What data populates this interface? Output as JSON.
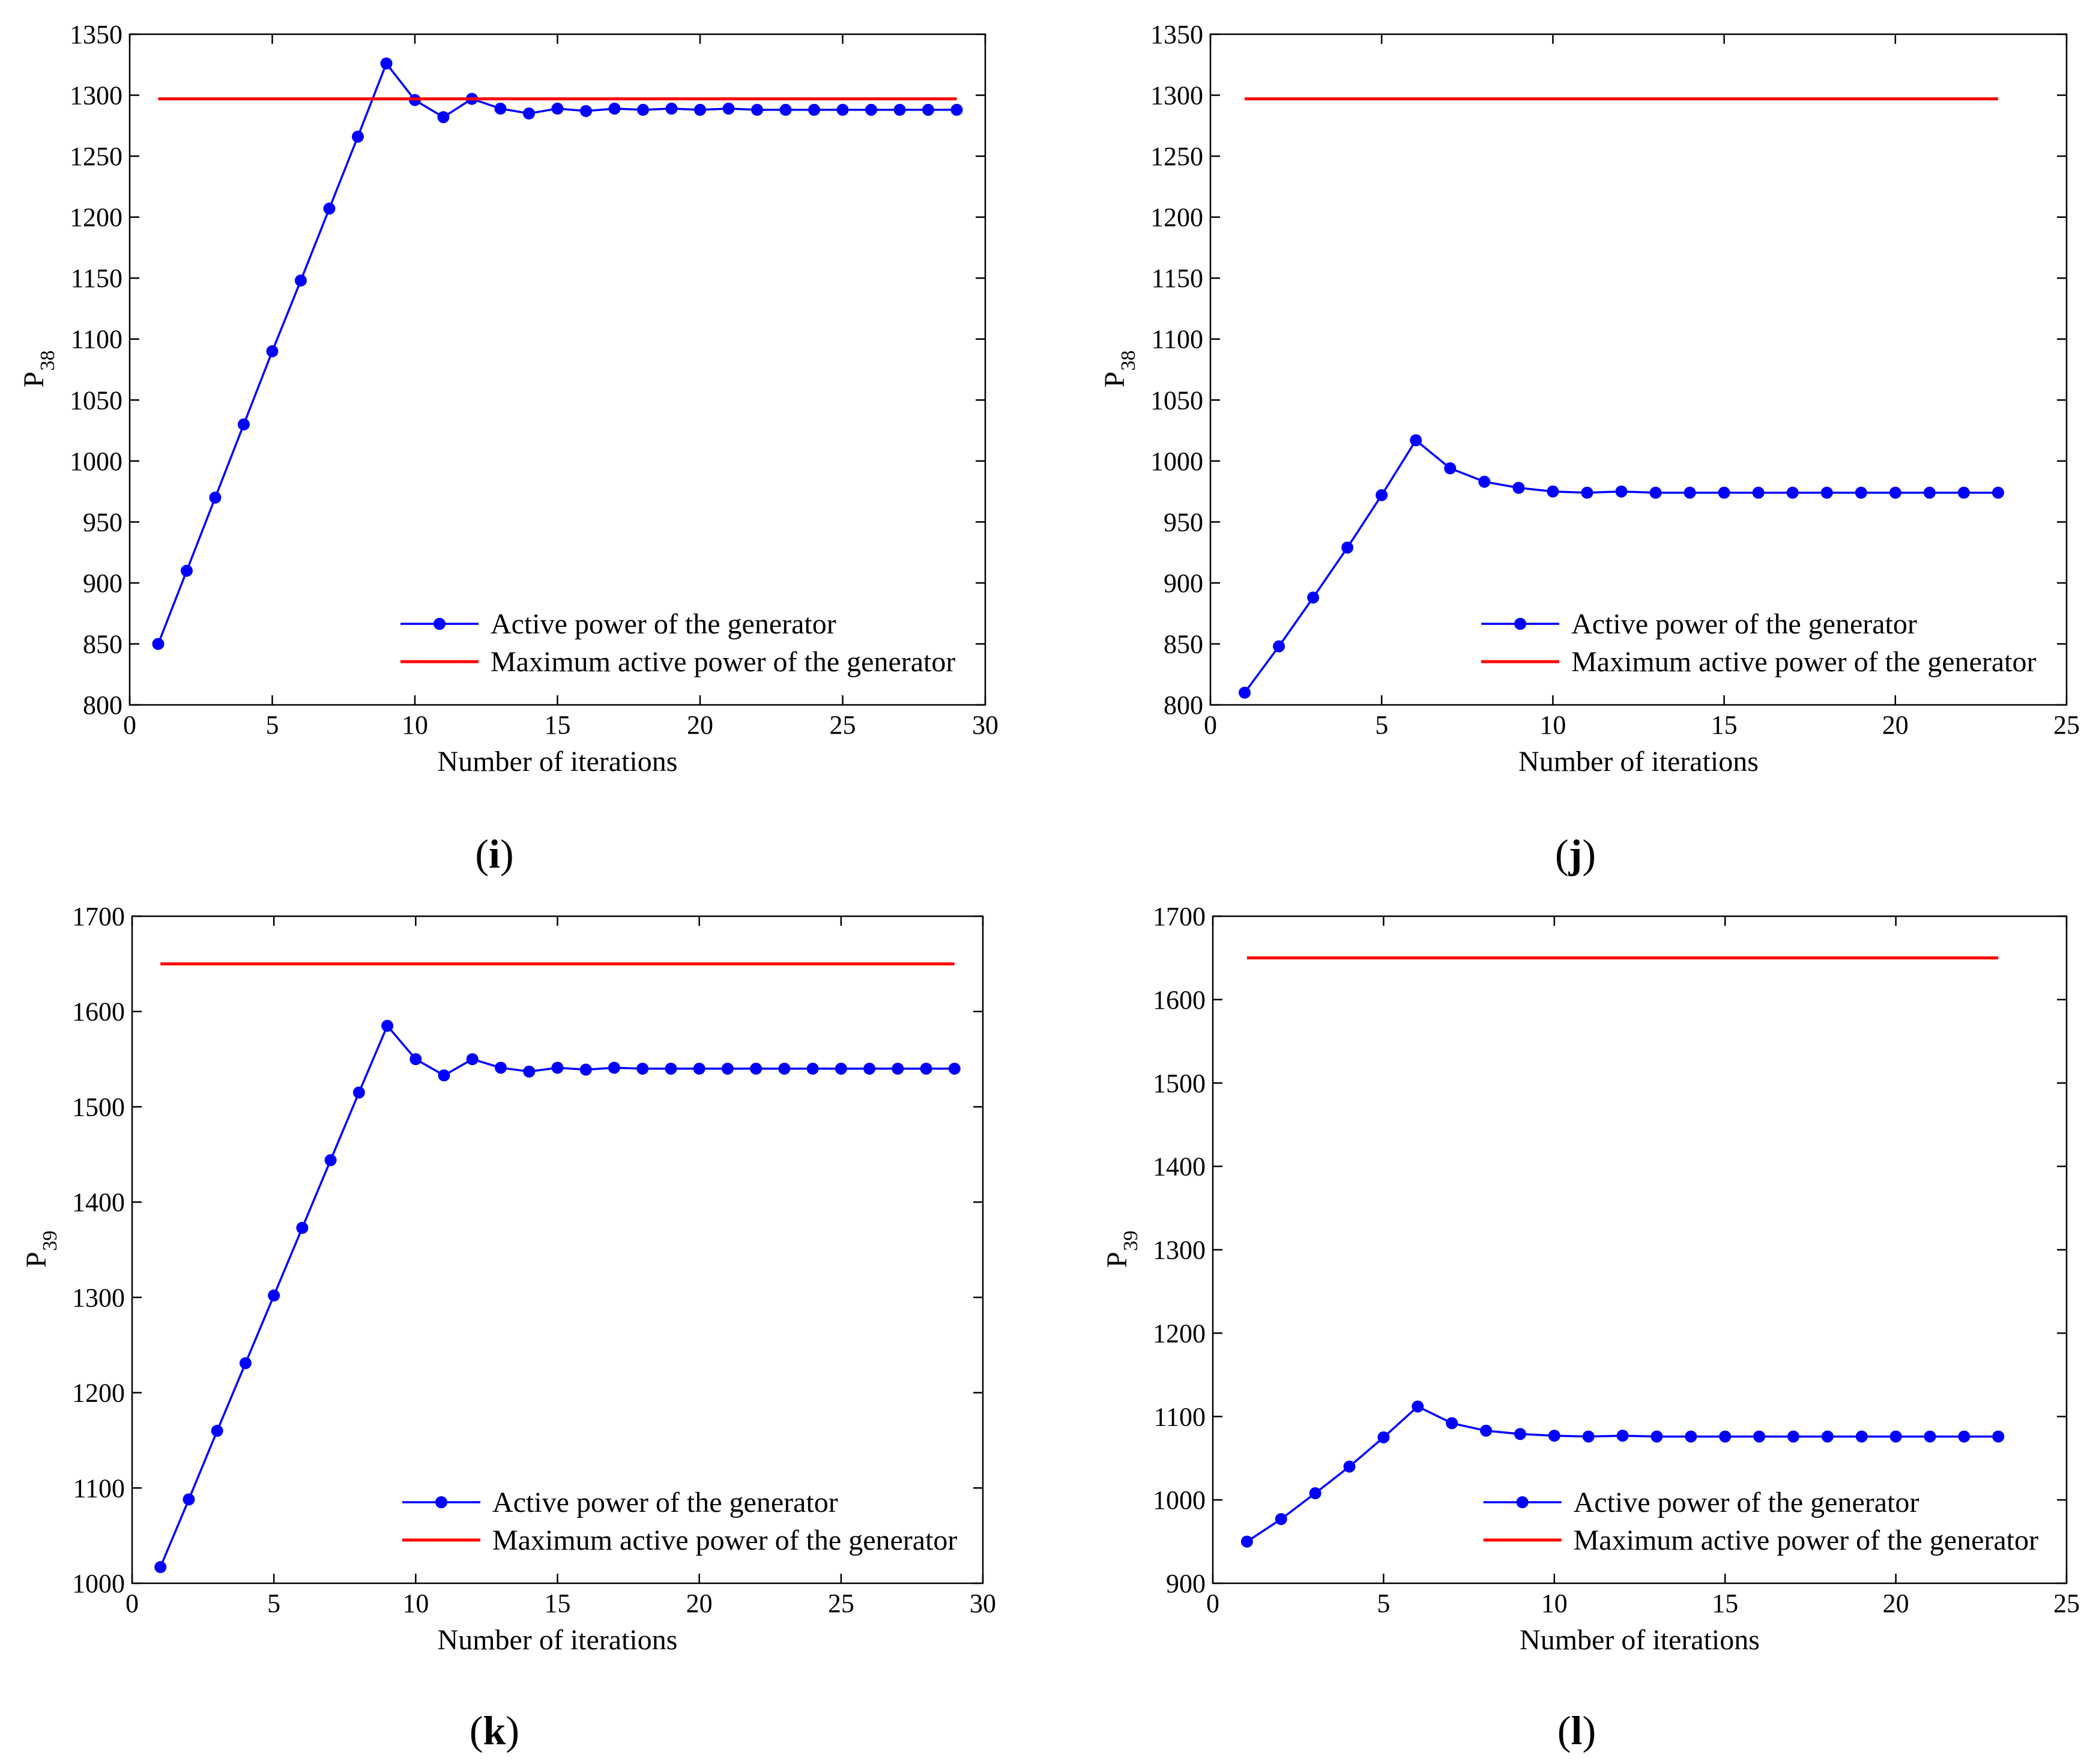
{
  "colors": {
    "active": "#0000ff",
    "max": "#ff0000",
    "axis": "#000000"
  },
  "chart_data": [
    {
      "type": "line",
      "caption": {
        "open": "(",
        "letter": "i",
        "close": ")"
      },
      "ylabel": {
        "main": "P",
        "sub": "38"
      },
      "xlabel": "Number of iterations",
      "xlim": [
        0,
        30
      ],
      "ylim": [
        800,
        1350
      ],
      "xticks": [
        0,
        5,
        10,
        15,
        20,
        25,
        30
      ],
      "yticks": [
        800,
        850,
        900,
        950,
        1000,
        1050,
        1100,
        1150,
        1200,
        1250,
        1300,
        1350
      ],
      "legend_position": "bottom-right",
      "series": [
        {
          "name": "Active power of the generator",
          "style": "line-marker",
          "x": [
            1,
            2,
            3,
            4,
            5,
            6,
            7,
            8,
            9,
            10,
            11,
            12,
            13,
            14,
            15,
            16,
            17,
            18,
            19,
            20,
            21,
            22,
            23,
            24,
            25,
            26,
            27,
            28,
            29
          ],
          "y": [
            850,
            910,
            970,
            1030,
            1090,
            1148,
            1207,
            1266,
            1326,
            1296,
            1282,
            1297,
            1289,
            1285,
            1289,
            1287,
            1289,
            1288,
            1289,
            1288,
            1289,
            1288,
            1288,
            1288,
            1288,
            1288,
            1288,
            1288,
            1288
          ]
        },
        {
          "name": "Maximum active power of the generator",
          "style": "line",
          "x": [
            1,
            29
          ],
          "y": [
            1297,
            1297
          ]
        }
      ]
    },
    {
      "type": "line",
      "caption": {
        "open": "(",
        "letter": "j",
        "close": ")"
      },
      "ylabel": {
        "main": "P",
        "sub": "38"
      },
      "xlabel": "Number of iterations",
      "xlim": [
        0,
        25
      ],
      "ylim": [
        800,
        1350
      ],
      "xticks": [
        0,
        5,
        10,
        15,
        20,
        25
      ],
      "yticks": [
        800,
        850,
        900,
        950,
        1000,
        1050,
        1100,
        1150,
        1200,
        1250,
        1300,
        1350
      ],
      "legend_position": "bottom-right",
      "series": [
        {
          "name": "Active power of the generator",
          "style": "line-marker",
          "x": [
            1,
            2,
            3,
            4,
            5,
            6,
            7,
            8,
            9,
            10,
            11,
            12,
            13,
            14,
            15,
            16,
            17,
            18,
            19,
            20,
            21,
            22,
            23
          ],
          "y": [
            810,
            848,
            888,
            929,
            972,
            1017,
            994,
            983,
            978,
            975,
            974,
            975,
            974,
            974,
            974,
            974,
            974,
            974,
            974,
            974,
            974,
            974,
            974
          ]
        },
        {
          "name": "Maximum active power of the generator",
          "style": "line",
          "x": [
            1,
            23
          ],
          "y": [
            1297,
            1297
          ]
        }
      ]
    },
    {
      "type": "line",
      "caption": {
        "open": "(",
        "letter": "k",
        "close": ")"
      },
      "ylabel": {
        "main": "P",
        "sub": "39"
      },
      "xlabel": "Number of iterations",
      "xlim": [
        0,
        30
      ],
      "ylim": [
        1000,
        1700
      ],
      "xticks": [
        0,
        5,
        10,
        15,
        20,
        25,
        30
      ],
      "yticks": [
        1000,
        1100,
        1200,
        1300,
        1400,
        1500,
        1600,
        1700
      ],
      "legend_position": "bottom-right",
      "series": [
        {
          "name": "Active power of the generator",
          "style": "line-marker",
          "x": [
            1,
            2,
            3,
            4,
            5,
            6,
            7,
            8,
            9,
            10,
            11,
            12,
            13,
            14,
            15,
            16,
            17,
            18,
            19,
            20,
            21,
            22,
            23,
            24,
            25,
            26,
            27,
            28,
            29
          ],
          "y": [
            1017,
            1088,
            1160,
            1231,
            1302,
            1373,
            1444,
            1515,
            1585,
            1550,
            1533,
            1550,
            1541,
            1537,
            1541,
            1539,
            1541,
            1540,
            1540,
            1540,
            1540,
            1540,
            1540,
            1540,
            1540,
            1540,
            1540,
            1540,
            1540
          ]
        },
        {
          "name": "Maximum active power of the generator",
          "style": "line",
          "x": [
            1,
            29
          ],
          "y": [
            1650,
            1650
          ]
        }
      ]
    },
    {
      "type": "line",
      "caption": {
        "open": "(",
        "letter": "l",
        "close": ")"
      },
      "ylabel": {
        "main": "P",
        "sub": "39"
      },
      "xlabel": "Number of iterations",
      "xlim": [
        0,
        25
      ],
      "ylim": [
        900,
        1700
      ],
      "xticks": [
        0,
        5,
        10,
        15,
        20,
        25
      ],
      "yticks": [
        900,
        1000,
        1100,
        1200,
        1300,
        1400,
        1500,
        1600,
        1700
      ],
      "legend_position": "bottom-right",
      "series": [
        {
          "name": "Active power of the generator",
          "style": "line-marker",
          "x": [
            1,
            2,
            3,
            4,
            5,
            6,
            7,
            8,
            9,
            10,
            11,
            12,
            13,
            14,
            15,
            16,
            17,
            18,
            19,
            20,
            21,
            22,
            23
          ],
          "y": [
            950,
            977,
            1008,
            1040,
            1075,
            1112,
            1092,
            1083,
            1079,
            1077,
            1076,
            1077,
            1076,
            1076,
            1076,
            1076,
            1076,
            1076,
            1076,
            1076,
            1076,
            1076,
            1076
          ]
        },
        {
          "name": "Maximum active power of the generator",
          "style": "line",
          "x": [
            1,
            23
          ],
          "y": [
            1650,
            1650
          ]
        }
      ]
    }
  ]
}
